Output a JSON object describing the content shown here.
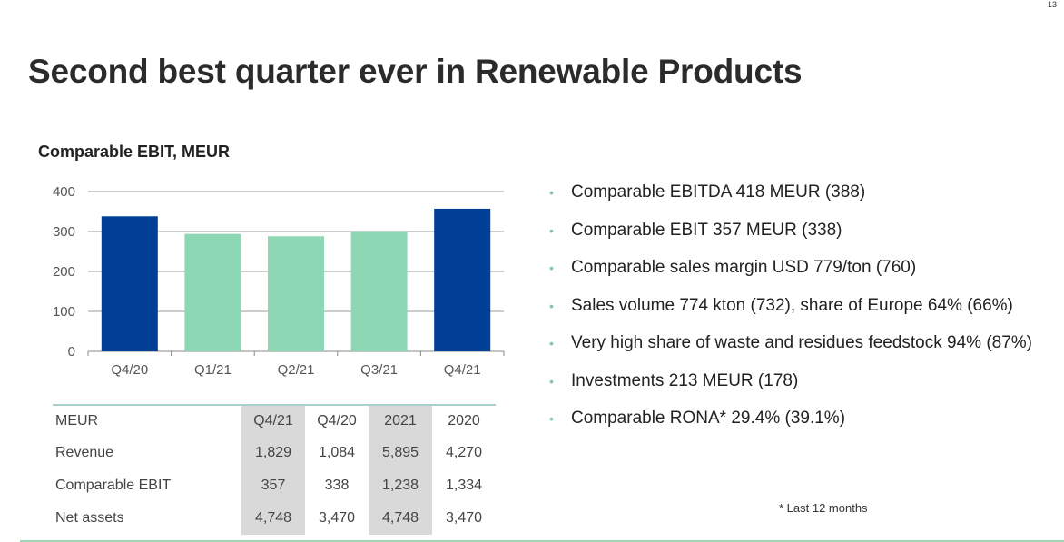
{
  "page_number": "13",
  "title": "Second best quarter ever in Renewable Products",
  "chart_data": {
    "type": "bar",
    "title": "Comparable EBIT, MEUR",
    "categories": [
      "Q4/20",
      "Q1/21",
      "Q2/21",
      "Q3/21",
      "Q4/21"
    ],
    "values": [
      338,
      294,
      288,
      300,
      357
    ],
    "bar_colors": [
      "#003f95",
      "#8dd7b4",
      "#8dd7b4",
      "#8dd7b4",
      "#003f95"
    ],
    "ylim": [
      0,
      400
    ],
    "yticks": [
      0,
      100,
      200,
      300,
      400
    ],
    "grid": true,
    "xlabel": "",
    "ylabel": ""
  },
  "table": {
    "header": [
      "MEUR",
      "Q4/21",
      "Q4/20",
      "2021",
      "2020"
    ],
    "rows": [
      {
        "label": "Revenue",
        "cells": [
          "1,829",
          "1,084",
          "5,895",
          "4,270"
        ]
      },
      {
        "label": "Comparable EBIT",
        "cells": [
          "357",
          "338",
          "1,238",
          "1,334"
        ]
      },
      {
        "label": "Net assets",
        "cells": [
          "4,748",
          "3,470",
          "4,748",
          "3,470"
        ]
      }
    ]
  },
  "bullets": [
    "Comparable EBITDA 418 MEUR (388)",
    "Comparable EBIT 357 MEUR (338)",
    "Comparable sales margin USD 779/ton (760)",
    "Sales volume 774 kton (732), share of Europe 64% (66%)",
    "Very high share of waste and residues feedstock 94% (87%)",
    "Investments 213 MEUR (178)",
    "Comparable RONA* 29.4% (39.1%)"
  ],
  "footnote": "* Last 12 months",
  "colors": {
    "dark_bar": "#003f95",
    "light_bar": "#8dd7b4",
    "bullet": "#7fc7a8",
    "accent_line": "#9fd6b6"
  }
}
